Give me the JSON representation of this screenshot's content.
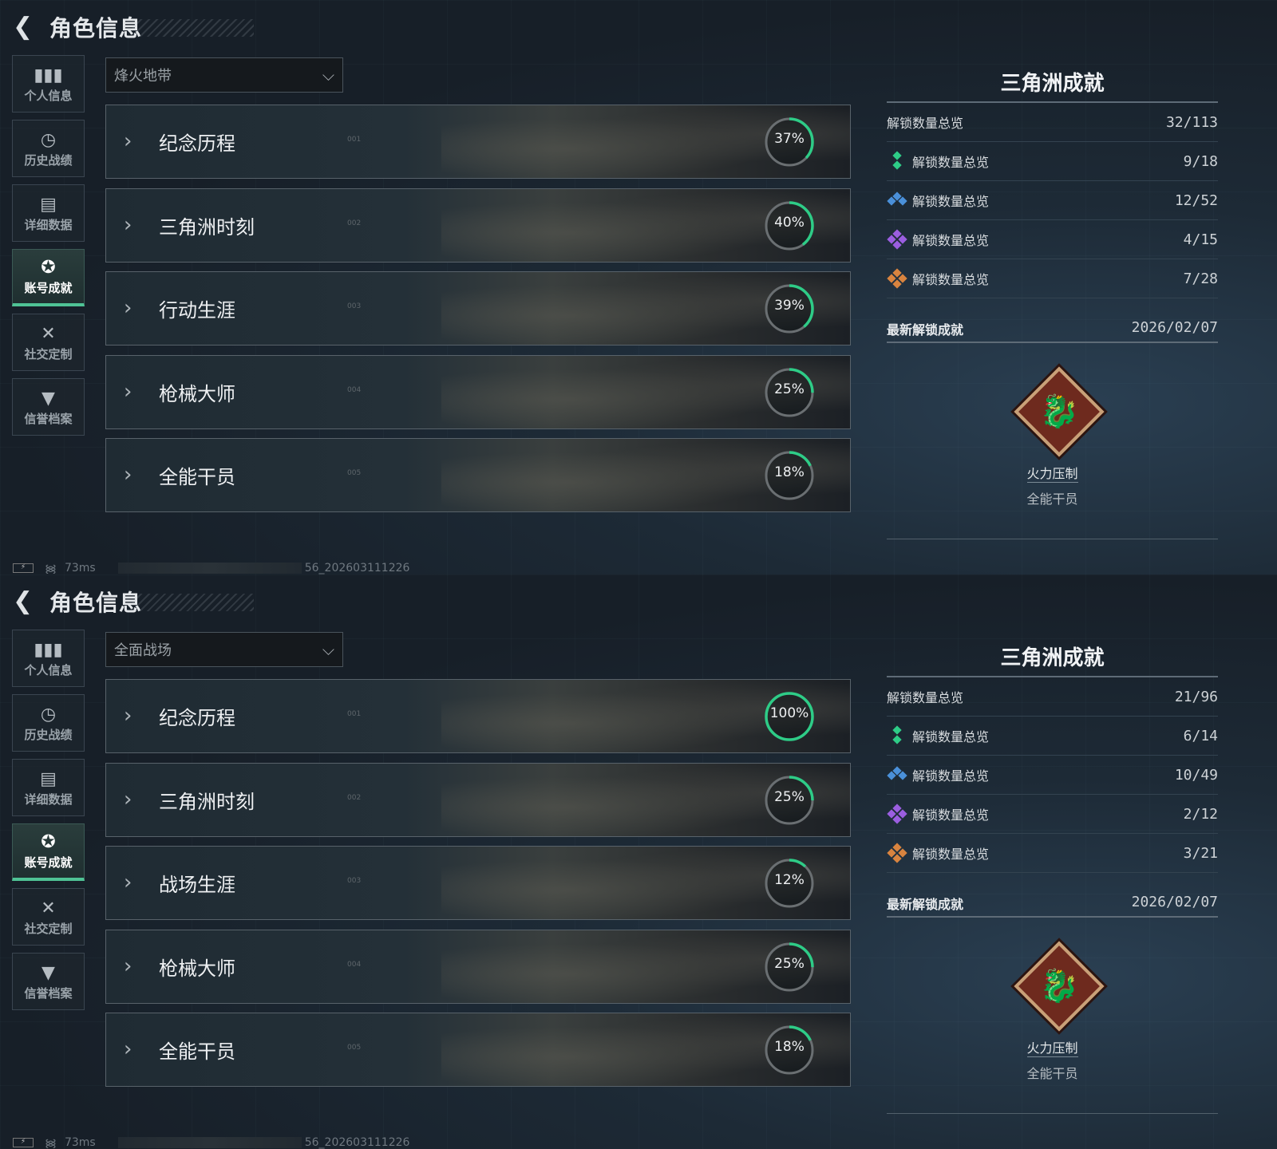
{
  "header": {
    "title": "角色信息",
    "back_icon": "back-arrow-icon"
  },
  "sidebar": [
    {
      "label": "个人信息",
      "icon": "bar-chart-icon",
      "glyph": "▮▮▮"
    },
    {
      "label": "历史战绩",
      "icon": "clock-history-icon",
      "glyph": "◷"
    },
    {
      "label": "详细数据",
      "icon": "folder-icon",
      "glyph": "▤"
    },
    {
      "label": "账号成就",
      "icon": "medal-icon",
      "glyph": "✪",
      "active": true
    },
    {
      "label": "社交定制",
      "icon": "tools-icon",
      "glyph": "✕"
    },
    {
      "label": "信誉档案",
      "icon": "shield-bolt-icon",
      "glyph": "▼"
    }
  ],
  "accent_color": "#2ecc87",
  "panels": [
    {
      "mode": "烽火地带",
      "cards": [
        {
          "name": "纪念历程",
          "index": "001",
          "percent": 37
        },
        {
          "name": "三角洲时刻",
          "index": "002",
          "percent": 40
        },
        {
          "name": "行动生涯",
          "index": "003",
          "percent": 39
        },
        {
          "name": "枪械大师",
          "index": "004",
          "percent": 25
        },
        {
          "name": "全能干员",
          "index": "005",
          "percent": 18
        }
      ],
      "summary": {
        "title": "三角洲成就",
        "total_label": "解锁数量总览",
        "total_value": "32/113",
        "rows": [
          {
            "label": "解锁数量总览",
            "value": "9/18",
            "color": "#2ecc87"
          },
          {
            "label": "解锁数量总览",
            "value": "12/52",
            "color": "#4a90d9"
          },
          {
            "label": "解锁数量总览",
            "value": "4/15",
            "color": "#9b5ee0"
          },
          {
            "label": "解锁数量总览",
            "value": "7/28",
            "color": "#d9843f"
          }
        ],
        "latest_label": "最新解锁成就",
        "latest_date": "2026/02/07",
        "badge_name": "火力压制",
        "badge_category": "全能干员"
      },
      "status": {
        "ping": "73ms",
        "build": "56_202603111226"
      }
    },
    {
      "mode": "全面战场",
      "cards": [
        {
          "name": "纪念历程",
          "index": "001",
          "percent": 100
        },
        {
          "name": "三角洲时刻",
          "index": "002",
          "percent": 25
        },
        {
          "name": "战场生涯",
          "index": "003",
          "percent": 12
        },
        {
          "name": "枪械大师",
          "index": "004",
          "percent": 25
        },
        {
          "name": "全能干员",
          "index": "005",
          "percent": 18
        }
      ],
      "summary": {
        "title": "三角洲成就",
        "total_label": "解锁数量总览",
        "total_value": "21/96",
        "rows": [
          {
            "label": "解锁数量总览",
            "value": "6/14",
            "color": "#2ecc87"
          },
          {
            "label": "解锁数量总览",
            "value": "10/49",
            "color": "#4a90d9"
          },
          {
            "label": "解锁数量总览",
            "value": "2/12",
            "color": "#9b5ee0"
          },
          {
            "label": "解锁数量总览",
            "value": "3/21",
            "color": "#d9843f"
          }
        ],
        "latest_label": "最新解锁成就",
        "latest_date": "2026/02/07",
        "badge_name": "火力压制",
        "badge_category": "全能干员"
      },
      "status": {
        "ping": "73ms",
        "build": "56_202603111226"
      }
    }
  ]
}
